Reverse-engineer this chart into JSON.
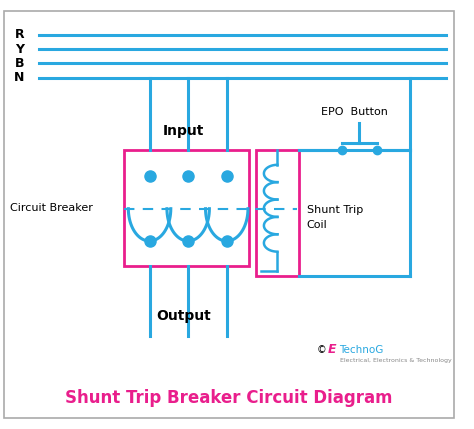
{
  "title": "Shunt Trip Breaker Circuit Diagram",
  "title_color": "#e91e8c",
  "title_fontsize": 12,
  "bg_color": "#ffffff",
  "border_color": "#aaaaaa",
  "wire_color": "#29a8e0",
  "wire_lw": 2.2,
  "pink_color": "#e91e8c",
  "pink_lw": 2.0,
  "rybn_labels": [
    "R",
    "Y",
    "B",
    "N"
  ],
  "label_input": "Input",
  "label_output": "Output",
  "label_cb": "Circuit Breaker",
  "label_epo": "EPO  Button",
  "label_coil1": "Shunt Trip",
  "label_coil2": "Coil",
  "copyright": "©",
  "etechnog_e": "E",
  "etechnog_rest": "TechnoG",
  "etechnog_sub": "Electrical, Electronics & Technology"
}
